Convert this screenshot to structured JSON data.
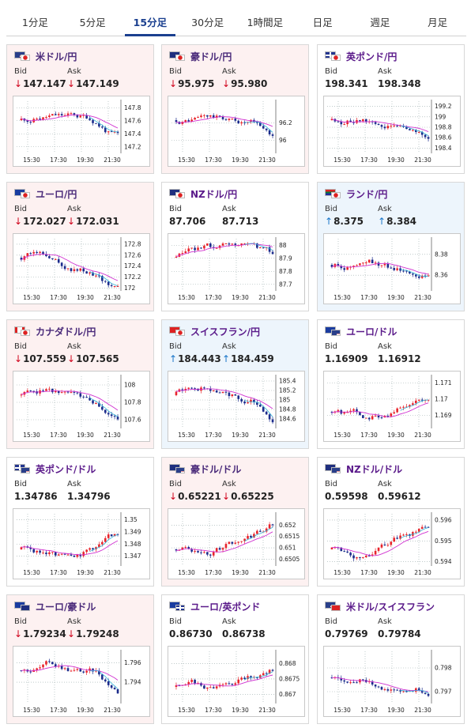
{
  "tabs": [
    {
      "label": "1分足",
      "active": false
    },
    {
      "label": "5分足",
      "active": false
    },
    {
      "label": "15分足",
      "active": true
    },
    {
      "label": "30分足",
      "active": false
    },
    {
      "label": "1時間足",
      "active": false
    },
    {
      "label": "日足",
      "active": false
    },
    {
      "label": "週足",
      "active": false
    },
    {
      "label": "月足",
      "active": false
    }
  ],
  "bid_label": "Bid",
  "ask_label": "Ask",
  "colors": {
    "up_candle": "#e8242c",
    "down_candle": "#1c2c8c",
    "ma_line": "#d030d0",
    "ma2_line": "#32b4d8",
    "down_arrow": "#d0021b",
    "up_arrow": "#1a76c9"
  },
  "x_ticks": [
    "15:30",
    "17:30",
    "19:30",
    "21:30"
  ],
  "cards": [
    {
      "name": "米ドル/円",
      "flags": [
        "us",
        "jp"
      ],
      "bg": "red",
      "direction": "down",
      "bid": "147.147",
      "ask": "147.149",
      "yticks": [
        "147.8",
        "147.6",
        "147.4",
        "147.2"
      ],
      "ylim": [
        147.1,
        147.9
      ],
      "trend": "down"
    },
    {
      "name": "豪ドル/円",
      "flags": [
        "au",
        "jp"
      ],
      "bg": "red",
      "direction": "down",
      "bid": "95.975",
      "ask": "95.980",
      "yticks": [
        "96.2",
        "96"
      ],
      "ylim": [
        95.85,
        96.45
      ],
      "trend": "down"
    },
    {
      "name": "英ポンド/円",
      "flags": [
        "gb",
        "jp"
      ],
      "bg": "plain",
      "direction": "none",
      "bid": "198.341",
      "ask": "198.348",
      "yticks": [
        "199.2",
        "199",
        "198.8",
        "198.6",
        "198.4"
      ],
      "ylim": [
        198.3,
        199.3
      ],
      "trend": "down"
    },
    {
      "name": "ユーロ/円",
      "flags": [
        "eu",
        "jp"
      ],
      "bg": "red",
      "direction": "down",
      "bid": "172.027",
      "ask": "172.031",
      "yticks": [
        "172.8",
        "172.6",
        "172.4",
        "172.2",
        "172"
      ],
      "ylim": [
        171.95,
        172.9
      ],
      "trend": "down"
    },
    {
      "name": "NZドル/円",
      "flags": [
        "nz",
        "jp"
      ],
      "bg": "plain",
      "direction": "none",
      "bid": "87.706",
      "ask": "87.713",
      "yticks": [
        "88",
        "87.9",
        "87.8",
        "87.7"
      ],
      "ylim": [
        87.65,
        88.05
      ],
      "trend": "down"
    },
    {
      "name": "ランド/円",
      "flags": [
        "za",
        "jp"
      ],
      "bg": "blue",
      "direction": "up",
      "bid": "8.375",
      "ask": "8.384",
      "yticks": [
        "8.38",
        "8.36"
      ],
      "ylim": [
        8.345,
        8.395
      ],
      "trend": "flat"
    },
    {
      "name": "カナダドル/円",
      "flags": [
        "ca",
        "jp"
      ],
      "bg": "red",
      "direction": "down",
      "bid": "107.559",
      "ask": "107.565",
      "yticks": [
        "108",
        "107.8",
        "107.6"
      ],
      "ylim": [
        107.5,
        108.1
      ],
      "trend": "down"
    },
    {
      "name": "スイスフラン/円",
      "flags": [
        "ch",
        "jp"
      ],
      "bg": "blue",
      "direction": "up",
      "bid": "184.443",
      "ask": "184.459",
      "yticks": [
        "185.4",
        "185.2",
        "185",
        "184.8",
        "184.6"
      ],
      "ylim": [
        184.4,
        185.5
      ],
      "trend": "down"
    },
    {
      "name": "ユーロ/ドル",
      "flags": [
        "eu",
        "us"
      ],
      "bg": "plain",
      "direction": "none",
      "bid": "1.16909",
      "ask": "1.16912",
      "yticks": [
        "1.171",
        "1.17",
        "1.169"
      ],
      "ylim": [
        1.1682,
        1.1714
      ],
      "trend": "up"
    },
    {
      "name": "英ポンド/ドル",
      "flags": [
        "gb",
        "us"
      ],
      "bg": "plain",
      "direction": "none",
      "bid": "1.34786",
      "ask": "1.34796",
      "yticks": [
        "1.35",
        "1.349",
        "1.348",
        "1.347"
      ],
      "ylim": [
        1.3462,
        1.3505
      ],
      "trend": "up"
    },
    {
      "name": "豪ドル/ドル",
      "flags": [
        "au",
        "us"
      ],
      "bg": "red",
      "direction": "down",
      "bid": "0.65221",
      "ask": "0.65225",
      "yticks": [
        "0.652",
        "0.6515",
        "0.651",
        "0.6505"
      ],
      "ylim": [
        0.6502,
        0.6525
      ],
      "trend": "up"
    },
    {
      "name": "NZドル/ドル",
      "flags": [
        "nz",
        "us"
      ],
      "bg": "plain",
      "direction": "none",
      "bid": "0.59598",
      "ask": "0.59612",
      "yticks": [
        "0.596",
        "0.595",
        "0.594"
      ],
      "ylim": [
        0.5938,
        0.5963
      ],
      "trend": "up"
    },
    {
      "name": "ユーロ/豪ドル",
      "flags": [
        "eu",
        "au"
      ],
      "bg": "red",
      "direction": "down",
      "bid": "1.79234",
      "ask": "1.79248",
      "yticks": [
        "1.796",
        "1.794"
      ],
      "ylim": [
        1.7918,
        1.7972
      ],
      "trend": "down"
    },
    {
      "name": "ユーロ/英ポンド",
      "flags": [
        "eu",
        "gb"
      ],
      "bg": "plain",
      "direction": "none",
      "bid": "0.86730",
      "ask": "0.86738",
      "yticks": [
        "0.868",
        "0.8675",
        "0.867"
      ],
      "ylim": [
        0.8667,
        0.8684
      ],
      "trend": "up"
    },
    {
      "name": "米ドル/スイスフラン",
      "flags": [
        "us",
        "ch"
      ],
      "bg": "plain",
      "direction": "none",
      "bid": "0.79769",
      "ask": "0.79784",
      "yticks": [
        "0.798",
        "0.797"
      ],
      "ylim": [
        0.7965,
        0.7987
      ],
      "trend": "flat"
    }
  ]
}
